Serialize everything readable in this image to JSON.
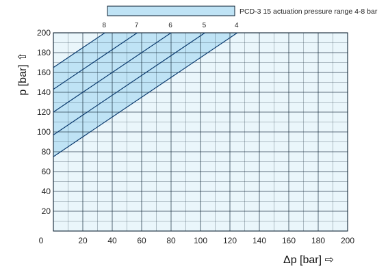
{
  "chart_data": {
    "type": "line",
    "xlabel": "Δp [bar] ⇨",
    "ylabel": "p [bar] ⇧",
    "xlim": [
      0,
      200
    ],
    "ylim": [
      0,
      200
    ],
    "x_ticks": [
      "0",
      "20",
      "40",
      "60",
      "80",
      "100",
      "120",
      "140",
      "160",
      "180",
      "200"
    ],
    "y_ticks": [
      "20",
      "40",
      "60",
      "80",
      "100",
      "120",
      "140",
      "160",
      "180",
      "200"
    ],
    "grid": true,
    "legend": {
      "label": "PCD-3 15 actuation pressure range 4-8 bar",
      "placement": "top",
      "color": "#bfe3f5"
    },
    "band": {
      "upper_series": "8",
      "lower_series": "4"
    },
    "series": [
      {
        "name": "8",
        "x": [
          0,
          35
        ],
        "y": [
          165,
          200
        ]
      },
      {
        "name": "7",
        "x": [
          0,
          57
        ],
        "y": [
          143,
          200
        ]
      },
      {
        "name": "6",
        "x": [
          0,
          80
        ],
        "y": [
          120,
          200
        ]
      },
      {
        "name": "5",
        "x": [
          0,
          103
        ],
        "y": [
          97,
          200
        ]
      },
      {
        "name": "4",
        "x": [
          0,
          125
        ],
        "y": [
          75,
          200
        ]
      }
    ]
  },
  "colors": {
    "plot_bg": "#eaf6fb",
    "band": "#bfe3f5",
    "grid": "#0d2233",
    "line": "#0a3a6e"
  }
}
